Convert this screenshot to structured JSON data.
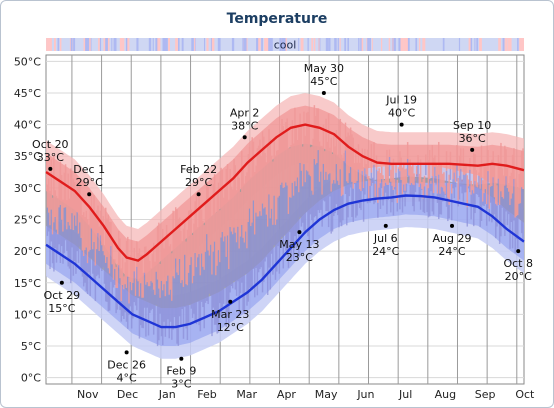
{
  "colors": {
    "high_line": "#e01c1c",
    "low_line": "#1f35d6",
    "normal_band": "#9a9a9a",
    "high_band_outer": "#f6b8b8",
    "high_band_inner": "#f08a8a",
    "low_band_outer": "#c6ccf5",
    "low_band_inner": "#8e9df0",
    "daily_high": "#f09a9a",
    "daily_low": "#8c8fd8",
    "comfort_bg": "#cfd7f3",
    "comfort_warm": "#ffc6c6",
    "comfort_cool": "#aeb9f2"
  },
  "chart_data": {
    "type": "line",
    "title": "Temperature",
    "comfort_strip_label": "cool",
    "x": [
      "Nov",
      "Dec",
      "Jan",
      "Feb",
      "Mar",
      "Apr",
      "May",
      "Jun",
      "Jul",
      "Aug",
      "Sep",
      "Oct"
    ],
    "y_ticks": [
      "50°C",
      "45°C",
      "40°C",
      "35°C",
      "30°C",
      "25°C",
      "20°C",
      "15°C",
      "10°C",
      "5°C",
      "0°C"
    ],
    "ylim": [
      -1,
      51
    ],
    "grid": true,
    "series": [
      {
        "key": "avg_high",
        "points": [
          [
            0,
            32.5
          ],
          [
            0.5,
            31
          ],
          [
            1.0,
            29.5
          ],
          [
            1.5,
            27
          ],
          [
            2.0,
            24
          ],
          [
            2.5,
            20.5
          ],
          [
            2.8,
            19
          ],
          [
            3.2,
            18.5
          ],
          [
            3.5,
            19.5
          ],
          [
            4.0,
            21.5
          ],
          [
            4.5,
            23.5
          ],
          [
            5.0,
            25.5
          ],
          [
            5.5,
            27.5
          ],
          [
            6.0,
            29.5
          ],
          [
            6.5,
            31.5
          ],
          [
            7.0,
            34
          ],
          [
            7.5,
            36
          ],
          [
            8.0,
            38
          ],
          [
            8.5,
            39.5
          ],
          [
            9.0,
            40
          ],
          [
            9.5,
            39.5
          ],
          [
            10.0,
            38.5
          ],
          [
            10.5,
            36.5
          ],
          [
            11.0,
            35
          ],
          [
            11.5,
            34
          ],
          [
            12.0,
            33.8
          ],
          [
            13.0,
            33.8
          ],
          [
            14.0,
            33.8
          ],
          [
            15.0,
            33.5
          ],
          [
            15.5,
            33.8
          ],
          [
            16.0,
            33.5
          ],
          [
            16.6,
            32.8
          ]
        ]
      },
      {
        "key": "avg_low",
        "points": [
          [
            0,
            21
          ],
          [
            0.5,
            19.5
          ],
          [
            1.0,
            18
          ],
          [
            1.5,
            16
          ],
          [
            2.0,
            14
          ],
          [
            2.5,
            12
          ],
          [
            3.0,
            10
          ],
          [
            3.5,
            9
          ],
          [
            4.0,
            8
          ],
          [
            4.5,
            8
          ],
          [
            5.0,
            8.5
          ],
          [
            5.5,
            9.5
          ],
          [
            6.0,
            10.5
          ],
          [
            6.5,
            12
          ],
          [
            7.0,
            13.5
          ],
          [
            7.5,
            15.5
          ],
          [
            8.0,
            18
          ],
          [
            8.5,
            20.5
          ],
          [
            9.0,
            23
          ],
          [
            9.5,
            25
          ],
          [
            10.0,
            26.5
          ],
          [
            10.5,
            27.5
          ],
          [
            11.0,
            28
          ],
          [
            11.5,
            28.3
          ],
          [
            12.0,
            28.5
          ],
          [
            12.5,
            28.8
          ],
          [
            13.0,
            28.7
          ],
          [
            13.5,
            28.5
          ],
          [
            14.0,
            28
          ],
          [
            14.5,
            27.5
          ],
          [
            15.0,
            27
          ],
          [
            15.5,
            25.5
          ],
          [
            16.0,
            23.5
          ],
          [
            16.6,
            21.5
          ]
        ]
      }
    ],
    "annotations": [
      {
        "date": "Oct 20",
        "value": "33°C",
        "x": 0.15,
        "y": 33
      },
      {
        "date": "Oct 29",
        "value": "15°C",
        "x": 0.55,
        "y": 15
      },
      {
        "date": "Dec 1",
        "value": "29°C",
        "x": 1.5,
        "y": 29
      },
      {
        "date": "Dec 26",
        "value": "4°C",
        "x": 2.8,
        "y": 4
      },
      {
        "date": "Feb 9",
        "value": "3°C",
        "x": 4.7,
        "y": 3
      },
      {
        "date": "Feb 22",
        "value": "29°C",
        "x": 5.3,
        "y": 29
      },
      {
        "date": "Mar 23",
        "value": "12°C",
        "x": 6.4,
        "y": 12
      },
      {
        "date": "Apr 2",
        "value": "38°C",
        "x": 6.9,
        "y": 38
      },
      {
        "date": "May 13",
        "value": "23°C",
        "x": 8.8,
        "y": 23
      },
      {
        "date": "May 30",
        "value": "45°C",
        "x": 9.65,
        "y": 45
      },
      {
        "date": "Jul 6",
        "value": "24°C",
        "x": 11.8,
        "y": 24
      },
      {
        "date": "Jul 19",
        "value": "40°C",
        "x": 12.35,
        "y": 40
      },
      {
        "date": "Aug 29",
        "value": "24°C",
        "x": 14.1,
        "y": 24
      },
      {
        "date": "Sep 10",
        "value": "36°C",
        "x": 14.8,
        "y": 36
      },
      {
        "date": "Oct 8",
        "value": "20°C",
        "x": 16.4,
        "y": 20
      }
    ]
  }
}
